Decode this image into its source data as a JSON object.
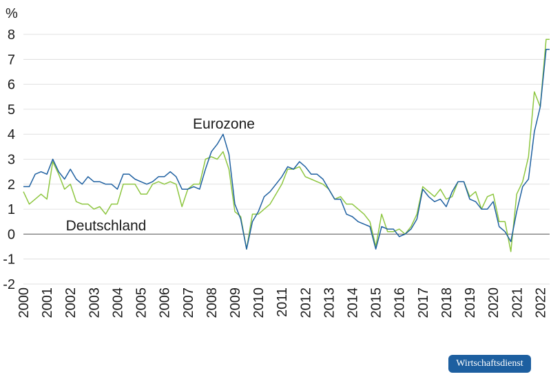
{
  "chart_data": {
    "type": "line",
    "y_unit_label": "%",
    "ylim": [
      -2,
      8
    ],
    "yticks": [
      -2,
      -1,
      0,
      1,
      2,
      3,
      4,
      5,
      6,
      7,
      8
    ],
    "xlim": [
      2000,
      2022.4
    ],
    "xticks": [
      2000,
      2001,
      2002,
      2003,
      2004,
      2005,
      2006,
      2007,
      2008,
      2009,
      2010,
      2011,
      2012,
      2013,
      2014,
      2015,
      2016,
      2017,
      2018,
      2019,
      2020,
      2021,
      2022
    ],
    "grid": "horizontal",
    "annotations": [
      {
        "text": "Eurozone",
        "series": "Eurozone",
        "x": 2008.6,
        "y": 4.3
      },
      {
        "text": "Deutschland",
        "series": "Deutschland",
        "x": 2003.0,
        "y": 0.35
      }
    ],
    "series": [
      {
        "name": "Eurozone",
        "color": "#1d5fa0",
        "x": [
          2000.0,
          2000.25,
          2000.5,
          2000.75,
          2001.0,
          2001.25,
          2001.5,
          2001.75,
          2002.0,
          2002.25,
          2002.5,
          2002.75,
          2003.0,
          2003.25,
          2003.5,
          2003.75,
          2004.0,
          2004.25,
          2004.5,
          2004.75,
          2005.0,
          2005.25,
          2005.5,
          2005.75,
          2006.0,
          2006.25,
          2006.5,
          2006.75,
          2007.0,
          2007.25,
          2007.5,
          2007.75,
          2008.0,
          2008.25,
          2008.5,
          2008.75,
          2009.0,
          2009.25,
          2009.5,
          2009.75,
          2010.0,
          2010.25,
          2010.5,
          2010.75,
          2011.0,
          2011.25,
          2011.5,
          2011.75,
          2012.0,
          2012.25,
          2012.5,
          2012.75,
          2013.0,
          2013.25,
          2013.5,
          2013.75,
          2014.0,
          2014.25,
          2014.5,
          2014.75,
          2015.0,
          2015.25,
          2015.5,
          2015.75,
          2016.0,
          2016.25,
          2016.5,
          2016.75,
          2017.0,
          2017.25,
          2017.5,
          2017.75,
          2018.0,
          2018.25,
          2018.5,
          2018.75,
          2019.0,
          2019.25,
          2019.5,
          2019.75,
          2020.0,
          2020.25,
          2020.5,
          2020.75,
          2021.0,
          2021.25,
          2021.5,
          2021.75,
          2022.0,
          2022.25,
          2022.4
        ],
        "values": [
          1.9,
          1.9,
          2.4,
          2.5,
          2.4,
          3.0,
          2.5,
          2.2,
          2.6,
          2.2,
          2.0,
          2.3,
          2.1,
          2.1,
          2.0,
          2.0,
          1.8,
          2.4,
          2.4,
          2.2,
          2.1,
          2.0,
          2.1,
          2.3,
          2.3,
          2.5,
          2.3,
          1.8,
          1.8,
          1.9,
          1.8,
          2.6,
          3.3,
          3.6,
          4.0,
          3.2,
          1.2,
          0.6,
          -0.6,
          0.5,
          0.9,
          1.5,
          1.7,
          2.0,
          2.3,
          2.7,
          2.6,
          2.9,
          2.7,
          2.4,
          2.4,
          2.2,
          1.8,
          1.4,
          1.4,
          0.8,
          0.7,
          0.5,
          0.4,
          0.3,
          -0.6,
          0.3,
          0.2,
          0.2,
          -0.1,
          0.0,
          0.2,
          0.6,
          1.8,
          1.5,
          1.3,
          1.4,
          1.1,
          1.7,
          2.1,
          2.1,
          1.4,
          1.3,
          1.0,
          1.0,
          1.3,
          0.3,
          0.1,
          -0.3,
          0.9,
          1.9,
          2.2,
          4.1,
          5.1,
          7.4,
          7.4
        ]
      },
      {
        "name": "Deutschland",
        "color": "#8dc63f",
        "x": [
          2000.0,
          2000.25,
          2000.5,
          2000.75,
          2001.0,
          2001.25,
          2001.5,
          2001.75,
          2002.0,
          2002.25,
          2002.5,
          2002.75,
          2003.0,
          2003.25,
          2003.5,
          2003.75,
          2004.0,
          2004.25,
          2004.5,
          2004.75,
          2005.0,
          2005.25,
          2005.5,
          2005.75,
          2006.0,
          2006.25,
          2006.5,
          2006.75,
          2007.0,
          2007.25,
          2007.5,
          2007.75,
          2008.0,
          2008.25,
          2008.5,
          2008.75,
          2009.0,
          2009.25,
          2009.5,
          2009.75,
          2010.0,
          2010.25,
          2010.5,
          2010.75,
          2011.0,
          2011.25,
          2011.5,
          2011.75,
          2012.0,
          2012.25,
          2012.5,
          2012.75,
          2013.0,
          2013.25,
          2013.5,
          2013.75,
          2014.0,
          2014.25,
          2014.5,
          2014.75,
          2015.0,
          2015.25,
          2015.5,
          2015.75,
          2016.0,
          2016.25,
          2016.5,
          2016.75,
          2017.0,
          2017.25,
          2017.5,
          2017.75,
          2018.0,
          2018.25,
          2018.5,
          2018.75,
          2019.0,
          2019.25,
          2019.5,
          2019.75,
          2020.0,
          2020.25,
          2020.5,
          2020.75,
          2021.0,
          2021.25,
          2021.5,
          2021.75,
          2022.0,
          2022.25,
          2022.4
        ],
        "values": [
          1.7,
          1.2,
          1.4,
          1.6,
          1.4,
          2.9,
          2.4,
          1.8,
          2.0,
          1.3,
          1.2,
          1.2,
          1.0,
          1.1,
          0.8,
          1.2,
          1.2,
          2.0,
          2.0,
          2.0,
          1.6,
          1.6,
          2.0,
          2.1,
          2.0,
          2.1,
          2.0,
          1.1,
          1.8,
          2.0,
          2.0,
          3.0,
          3.1,
          3.0,
          3.3,
          2.6,
          0.9,
          0.7,
          -0.6,
          0.8,
          0.8,
          1.0,
          1.2,
          1.6,
          2.0,
          2.6,
          2.6,
          2.7,
          2.3,
          2.2,
          2.1,
          2.0,
          1.8,
          1.4,
          1.5,
          1.2,
          1.2,
          1.0,
          0.8,
          0.5,
          -0.5,
          0.8,
          0.1,
          0.1,
          0.2,
          0.0,
          0.3,
          0.8,
          1.9,
          1.7,
          1.5,
          1.8,
          1.4,
          1.5,
          2.1,
          2.1,
          1.5,
          1.7,
          1.0,
          1.5,
          1.6,
          0.5,
          0.5,
          -0.7,
          1.6,
          2.1,
          3.1,
          5.7,
          5.1,
          7.8,
          7.8
        ]
      }
    ]
  },
  "source_badge": "Wirtschaftsdienst"
}
